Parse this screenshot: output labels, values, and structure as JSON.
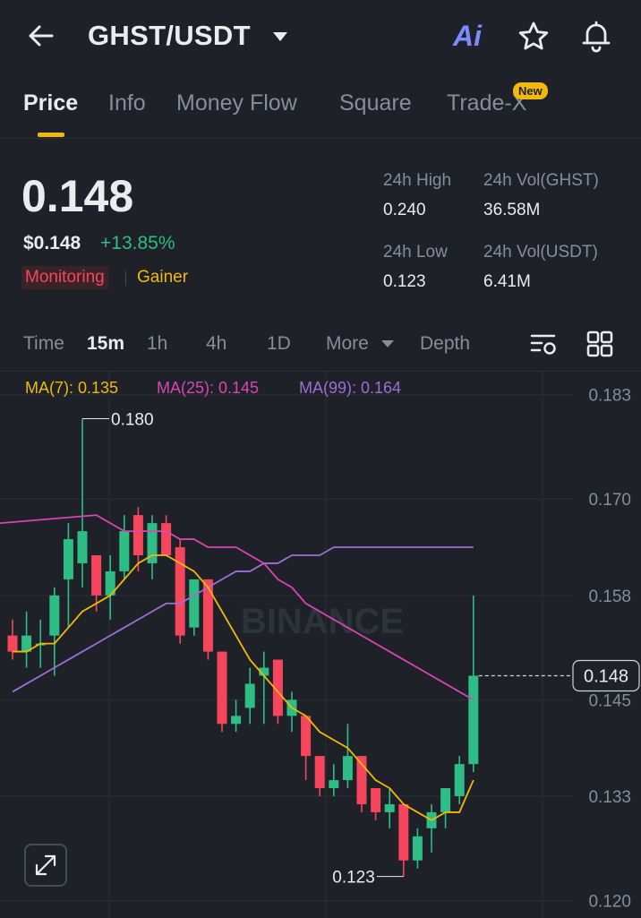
{
  "header": {
    "pair": "GHST/USDT",
    "ai_label": "Ai",
    "icons": [
      "back-arrow-icon",
      "chevron-down-icon",
      "ai-icon",
      "star-icon",
      "bell-icon"
    ]
  },
  "tabs": [
    {
      "label": "Price",
      "active": true
    },
    {
      "label": "Info"
    },
    {
      "label": "Money Flow"
    },
    {
      "label": "Square"
    },
    {
      "label": "Trade-X",
      "badge": "New"
    }
  ],
  "price": {
    "last": "0.148",
    "usd": "$0.148",
    "change": "+13.85%",
    "tag_monitoring": "Monitoring",
    "tag_gainer": "Gainer"
  },
  "stats": {
    "high_label": "24h High",
    "high_value": "0.240",
    "vol_base_label": "24h Vol(GHST)",
    "vol_base_value": "36.58M",
    "low_label": "24h Low",
    "low_value": "0.123",
    "vol_quote_label": "24h Vol(USDT)",
    "vol_quote_value": "6.41M"
  },
  "toolbar": {
    "time": "Time",
    "m15": "15m",
    "h1": "1h",
    "h4": "4h",
    "d1": "1D",
    "more": "More",
    "depth": "Depth",
    "icons": [
      "indicator-settings-icon",
      "grid-layout-icon"
    ]
  },
  "ma": {
    "ma7": "MA(7): 0.135",
    "ma25": "MA(25): 0.145",
    "ma99": "MA(99): 0.164"
  },
  "colors": {
    "up": "#2ebd85",
    "down": "#f6465d",
    "accent": "#f0b90b",
    "ma7": "#f0b90b",
    "ma25": "#d946b0",
    "ma99": "#9b6fd6"
  },
  "chart_data": {
    "type": "candlestick",
    "watermark": "BINANCE",
    "y_ticks": [
      "0.183",
      "0.170",
      "0.158",
      "0.145",
      "0.133",
      "0.120"
    ],
    "ylim": [
      0.1185,
      0.1843
    ],
    "current_price_label": "0.148",
    "high_marker": "0.180",
    "low_marker": "0.123",
    "candles": [
      {
        "o": 0.153,
        "h": 0.155,
        "l": 0.15,
        "c": 0.151
      },
      {
        "o": 0.151,
        "h": 0.156,
        "l": 0.149,
        "c": 0.153
      },
      {
        "o": 0.152,
        "h": 0.155,
        "l": 0.149,
        "c": 0.152
      },
      {
        "o": 0.153,
        "h": 0.159,
        "l": 0.148,
        "c": 0.158
      },
      {
        "o": 0.16,
        "h": 0.167,
        "l": 0.154,
        "c": 0.165
      },
      {
        "o": 0.162,
        "h": 0.18,
        "l": 0.159,
        "c": 0.166
      },
      {
        "o": 0.163,
        "h": 0.163,
        "l": 0.156,
        "c": 0.158
      },
      {
        "o": 0.158,
        "h": 0.163,
        "l": 0.155,
        "c": 0.161
      },
      {
        "o": 0.161,
        "h": 0.168,
        "l": 0.16,
        "c": 0.166
      },
      {
        "o": 0.168,
        "h": 0.169,
        "l": 0.161,
        "c": 0.163
      },
      {
        "o": 0.162,
        "h": 0.168,
        "l": 0.16,
        "c": 0.167
      },
      {
        "o": 0.167,
        "h": 0.168,
        "l": 0.163,
        "c": 0.163
      },
      {
        "o": 0.164,
        "h": 0.165,
        "l": 0.152,
        "c": 0.153
      },
      {
        "o": 0.154,
        "h": 0.16,
        "l": 0.153,
        "c": 0.16
      },
      {
        "o": 0.16,
        "h": 0.16,
        "l": 0.15,
        "c": 0.151
      },
      {
        "o": 0.151,
        "h": 0.151,
        "l": 0.141,
        "c": 0.142
      },
      {
        "o": 0.142,
        "h": 0.145,
        "l": 0.141,
        "c": 0.143
      },
      {
        "o": 0.144,
        "h": 0.149,
        "l": 0.142,
        "c": 0.147
      },
      {
        "o": 0.148,
        "h": 0.151,
        "l": 0.142,
        "c": 0.149
      },
      {
        "o": 0.15,
        "h": 0.15,
        "l": 0.142,
        "c": 0.143
      },
      {
        "o": 0.143,
        "h": 0.146,
        "l": 0.141,
        "c": 0.145
      },
      {
        "o": 0.143,
        "h": 0.143,
        "l": 0.135,
        "c": 0.138
      },
      {
        "o": 0.138,
        "h": 0.138,
        "l": 0.133,
        "c": 0.134
      },
      {
        "o": 0.134,
        "h": 0.137,
        "l": 0.133,
        "c": 0.135
      },
      {
        "o": 0.135,
        "h": 0.142,
        "l": 0.134,
        "c": 0.138
      },
      {
        "o": 0.138,
        "h": 0.138,
        "l": 0.131,
        "c": 0.132
      },
      {
        "o": 0.134,
        "h": 0.134,
        "l": 0.13,
        "c": 0.131
      },
      {
        "o": 0.131,
        "h": 0.134,
        "l": 0.129,
        "c": 0.132
      },
      {
        "o": 0.132,
        "h": 0.132,
        "l": 0.123,
        "c": 0.125
      },
      {
        "o": 0.125,
        "h": 0.129,
        "l": 0.124,
        "c": 0.128
      },
      {
        "o": 0.129,
        "h": 0.132,
        "l": 0.126,
        "c": 0.131
      },
      {
        "o": 0.131,
        "h": 0.134,
        "l": 0.129,
        "c": 0.134
      },
      {
        "o": 0.133,
        "h": 0.138,
        "l": 0.132,
        "c": 0.137
      },
      {
        "o": 0.137,
        "h": 0.158,
        "l": 0.136,
        "c": 0.148
      }
    ],
    "ma7": [
      0.151,
      0.151,
      0.152,
      0.152,
      0.154,
      0.156,
      0.157,
      0.158,
      0.16,
      0.162,
      0.163,
      0.163,
      0.162,
      0.161,
      0.159,
      0.156,
      0.153,
      0.15,
      0.148,
      0.146,
      0.144,
      0.143,
      0.141,
      0.14,
      0.139,
      0.137,
      0.135,
      0.134,
      0.132,
      0.131,
      0.13,
      0.131,
      0.131,
      0.135
    ],
    "ma25": [
      0.168,
      0.167,
      0.166,
      0.166,
      0.166,
      0.166,
      0.165,
      0.165,
      0.164,
      0.164,
      0.164,
      0.163,
      0.162,
      0.16,
      0.159,
      0.157,
      0.156,
      0.155,
      0.154,
      0.153,
      0.152,
      0.151,
      0.15,
      0.149,
      0.148,
      0.147,
      0.146,
      0.145
    ],
    "ma99": [
      0.146,
      0.147,
      0.148,
      0.149,
      0.15,
      0.151,
      0.152,
      0.153,
      0.154,
      0.155,
      0.156,
      0.157,
      0.157,
      0.158,
      0.159,
      0.16,
      0.161,
      0.161,
      0.162,
      0.162,
      0.163,
      0.163,
      0.163,
      0.164,
      0.164,
      0.164,
      0.164,
      0.164,
      0.164,
      0.164,
      0.164,
      0.164,
      0.164,
      0.164
    ]
  }
}
